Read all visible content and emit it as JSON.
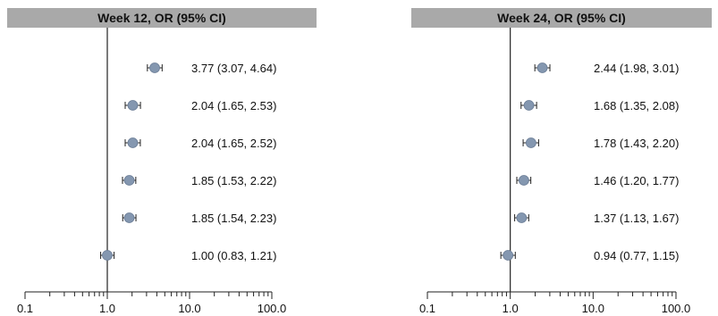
{
  "chart_data": [
    {
      "type": "scatter",
      "title": "Week 12, OR (95% CI)",
      "x_scale": "log",
      "xlim": [
        0.1,
        100
      ],
      "x_ticks": [
        "0.1",
        "1.0",
        "10.0",
        "100.0"
      ],
      "reference_line": 1.0,
      "grid": false,
      "points": [
        {
          "or": 3.77,
          "lo": 3.07,
          "hi": 4.64,
          "label": "3.77 (3.07, 4.64)"
        },
        {
          "or": 2.04,
          "lo": 1.65,
          "hi": 2.53,
          "label": "2.04 (1.65, 2.53)"
        },
        {
          "or": 2.04,
          "lo": 1.65,
          "hi": 2.52,
          "label": "2.04 (1.65, 2.52)"
        },
        {
          "or": 1.85,
          "lo": 1.53,
          "hi": 2.22,
          "label": "1.85 (1.53, 2.22)"
        },
        {
          "or": 1.85,
          "lo": 1.54,
          "hi": 2.23,
          "label": "1.85 (1.54, 2.23)"
        },
        {
          "or": 1.0,
          "lo": 0.83,
          "hi": 1.21,
          "label": "1.00 (0.83, 1.21)"
        }
      ]
    },
    {
      "type": "scatter",
      "title": "Week 24, OR (95% CI)",
      "x_scale": "log",
      "xlim": [
        0.1,
        100
      ],
      "x_ticks": [
        "0.1",
        "1.0",
        "10.0",
        "100.0"
      ],
      "reference_line": 1.0,
      "grid": false,
      "points": [
        {
          "or": 2.44,
          "lo": 1.98,
          "hi": 3.01,
          "label": "2.44 (1.98, 3.01)"
        },
        {
          "or": 1.68,
          "lo": 1.35,
          "hi": 2.08,
          "label": "1.68 (1.35, 2.08)"
        },
        {
          "or": 1.78,
          "lo": 1.43,
          "hi": 2.2,
          "label": "1.78 (1.43, 2.20)"
        },
        {
          "or": 1.46,
          "lo": 1.2,
          "hi": 1.77,
          "label": "1.46 (1.20, 1.77)"
        },
        {
          "or": 1.37,
          "lo": 1.13,
          "hi": 1.67,
          "label": "1.37 (1.13, 1.67)"
        },
        {
          "or": 0.94,
          "lo": 0.77,
          "hi": 1.15,
          "label": "0.94 (0.77, 1.15)"
        }
      ]
    }
  ],
  "colors": {
    "header_bg": "#a9a9a9",
    "marker_fill": "#8497b0",
    "marker_stroke": "#6b7d96",
    "line": "#222222"
  }
}
